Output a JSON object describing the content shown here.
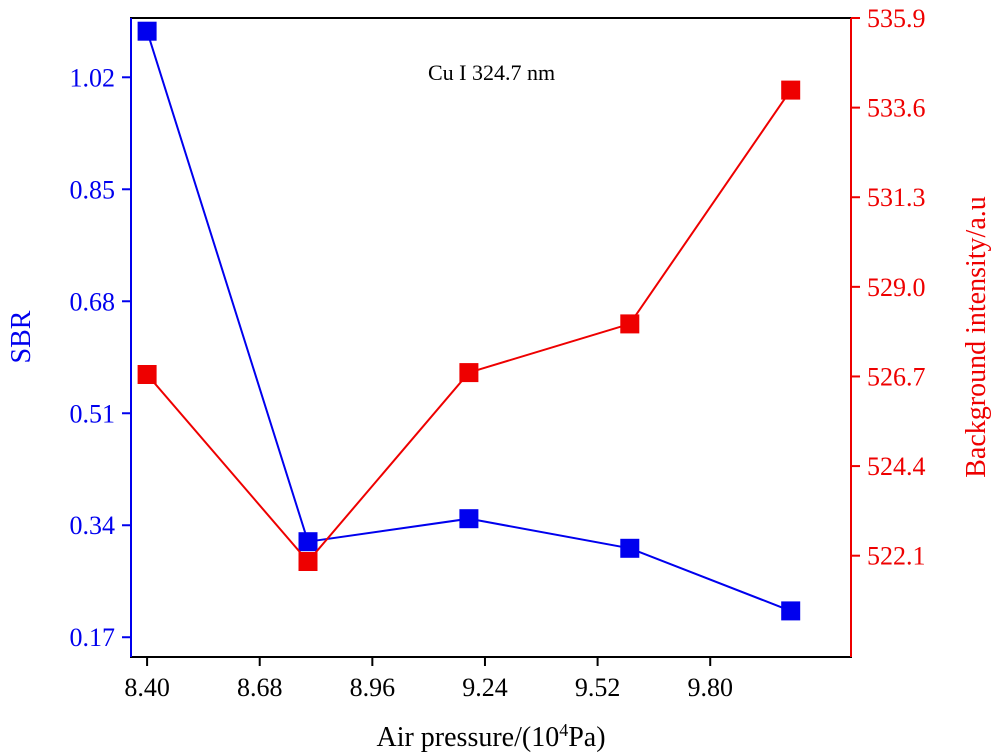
{
  "chart_data": {
    "type": "line",
    "annotation": "Cu I 324.7 nm",
    "xlabel": "Air pressure/(10",
    "xlabel_sup": "4",
    "xlabel_suffix": "Pa)",
    "ylabel_left": "SBR",
    "ylabel_right": "Background intensity/a.u",
    "xlim": [
      8.36,
      10.15
    ],
    "x_ticks": [
      "8.40",
      "8.68",
      "8.96",
      "9.24",
      "9.52",
      "9.80"
    ],
    "ylim_left": [
      0.14,
      1.11
    ],
    "y_ticks_left": [
      "0.17",
      "0.34",
      "0.51",
      "0.68",
      "0.85",
      "1.02"
    ],
    "ylim_right": [
      519.5,
      535.9
    ],
    "y_ticks_right": [
      "522.1",
      "524.4",
      "526.7",
      "529.0",
      "531.3",
      "533.6",
      "535.9"
    ],
    "grid": false,
    "colors": {
      "left": "#0000ee",
      "right": "#ee0000",
      "axes": "#000000"
    },
    "series": [
      {
        "axis": "left",
        "color": "#0000ee",
        "x": [
          8.4,
          8.8,
          9.2,
          9.6,
          10.0
        ],
        "y": [
          1.09,
          0.315,
          0.35,
          0.305,
          0.21
        ]
      },
      {
        "axis": "right",
        "color": "#ee0000",
        "x": [
          8.4,
          8.8,
          9.2,
          9.6,
          10.0
        ],
        "y": [
          526.75,
          521.95,
          526.8,
          528.05,
          534.05
        ]
      }
    ]
  }
}
